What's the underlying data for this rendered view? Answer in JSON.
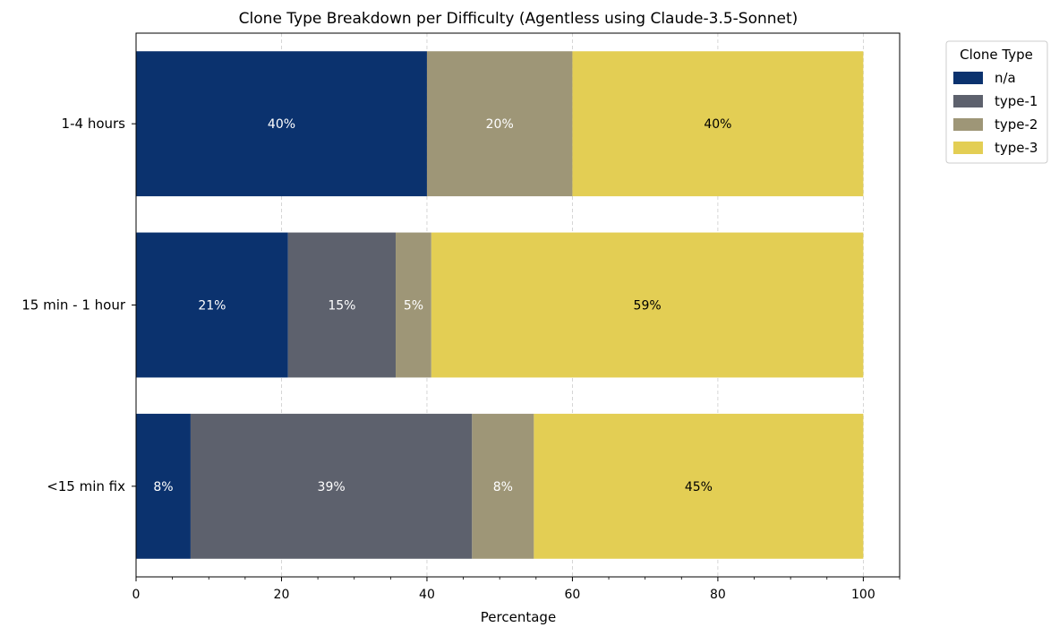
{
  "chart_data": {
    "type": "bar",
    "orientation": "horizontal",
    "stacked": true,
    "title": "Clone Type Breakdown per Difficulty (Agentless using Claude-3.5-Sonnet)",
    "xlabel": "Percentage",
    "ylabel": "",
    "xlim": [
      0,
      105
    ],
    "xticks": [
      "0",
      "20",
      "40",
      "60",
      "80",
      "100"
    ],
    "grid": "vertical dashed",
    "categories": [
      "1-4 hours",
      "15 min - 1 hour",
      "<15 min fix"
    ],
    "series": [
      {
        "name": "n/a",
        "color": "#0b326e",
        "values": [
          40,
          20.9,
          7.5
        ],
        "labels": [
          "40%",
          "21%",
          "8%"
        ],
        "label_color": "#ffffff"
      },
      {
        "name": "type-1",
        "color": "#5d616d",
        "values": [
          0,
          14.8,
          38.7
        ],
        "labels": [
          "",
          "15%",
          "39%"
        ],
        "label_color": "#ffffff"
      },
      {
        "name": "type-2",
        "color": "#9e9677",
        "values": [
          20,
          4.9,
          8.5
        ],
        "labels": [
          "20%",
          "5%",
          "8%"
        ],
        "label_color": "#ffffff"
      },
      {
        "name": "type-3",
        "color": "#e3ce54",
        "values": [
          40,
          59.4,
          45.3
        ],
        "labels": [
          "40%",
          "59%",
          "45%"
        ],
        "label_color": "#000000"
      }
    ],
    "legend": {
      "title": "Clone Type",
      "placement": "outside top-right"
    }
  }
}
